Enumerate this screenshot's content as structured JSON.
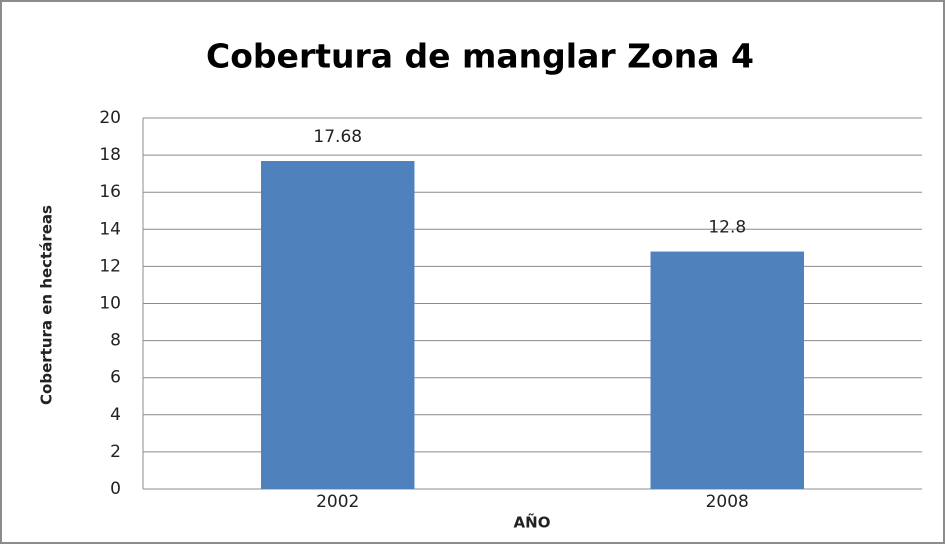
{
  "chart_data": {
    "type": "bar",
    "title": "Cobertura de manglar Zona 4",
    "categories": [
      "2002",
      "2008"
    ],
    "values": [
      17.68,
      12.8
    ],
    "color": "#4f81bd",
    "xlabel": "AÑO",
    "ylabel": "Cobertura en hectáreas",
    "ylim": [
      0,
      20
    ],
    "yticks": [
      0,
      2,
      4,
      6,
      8,
      10,
      12,
      14,
      16,
      18,
      20
    ],
    "grid": true
  }
}
